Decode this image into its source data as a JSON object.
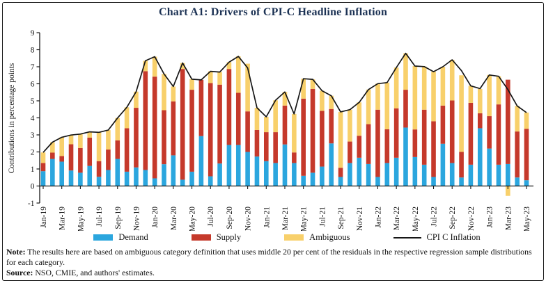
{
  "figure": {
    "title": "Chart A1: Drivers of CPI-C Headline Inflation",
    "note_label": "Note:",
    "note_text": " The results here are based on ambiguous category definition that uses middle 20 per cent of the residuals in the respective regression sample distributions for each category.",
    "source_label": "Source:",
    "source_text": " NSO, CMIE, and authors' estimates."
  },
  "colors": {
    "demand": "#2ba6de",
    "supply": "#c5392b",
    "ambiguous": "#f8d06b",
    "cpi_line": "#161616",
    "axis": "#161616",
    "title": "#1c3254"
  },
  "legend": [
    {
      "label": "Demand",
      "type": "box",
      "color_key": "demand"
    },
    {
      "label": "Supply",
      "type": "box",
      "color_key": "supply"
    },
    {
      "label": "Ambiguous",
      "type": "box",
      "color_key": "ambiguous"
    },
    {
      "label": "CPI C Inflation",
      "type": "line",
      "color_key": "cpi_line"
    }
  ],
  "chart_data": {
    "type": "bar",
    "subtype": "stacked-bars-with-line-overlay",
    "title": "Chart A1: Drivers of CPI-C Headline Inflation",
    "xlabel": "",
    "ylabel": "Contributions in percentage points",
    "ylim": [
      -1,
      9
    ],
    "yticks": [
      -1,
      0,
      1,
      2,
      3,
      4,
      5,
      6,
      7,
      8,
      9
    ],
    "grid": false,
    "legend_position": "bottom",
    "x_tick_every": 2,
    "x": [
      "Jan-19",
      "Feb-19",
      "Mar-19",
      "Apr-19",
      "May-19",
      "Jun-19",
      "Jul-19",
      "Aug-19",
      "Sep-19",
      "Oct-19",
      "Nov-19",
      "Dec-19",
      "Jan-20",
      "Feb-20",
      "Mar-20",
      "Apr-20",
      "May-20",
      "Jun-20",
      "Jul-20",
      "Aug-20",
      "Sep-20",
      "Oct-20",
      "Nov-20",
      "Dec-20",
      "Jan-21",
      "Feb-21",
      "Mar-21",
      "Apr-21",
      "May-21",
      "Jun-21",
      "Jul-21",
      "Aug-21",
      "Sep-21",
      "Oct-21",
      "Nov-21",
      "Dec-21",
      "Jan-22",
      "Feb-22",
      "Mar-22",
      "Apr-22",
      "May-22",
      "Jun-22",
      "Jul-22",
      "Aug-22",
      "Sep-22",
      "Oct-22",
      "Nov-22",
      "Dec-22",
      "Jan-23",
      "Feb-23",
      "Mar-23",
      "Apr-23",
      "May-23"
    ],
    "series": [
      {
        "name": "Demand",
        "color_key": "demand",
        "values": [
          0.87,
          1.59,
          1.43,
          0.91,
          0.78,
          1.18,
          0.54,
          0.94,
          1.59,
          0.84,
          1.09,
          0.94,
          0.45,
          1.28,
          1.8,
          0.37,
          0.84,
          2.93,
          0.57,
          1.32,
          2.41,
          2.41,
          2.0,
          1.73,
          1.46,
          1.35,
          2.44,
          1.35,
          0.6,
          0.78,
          1.14,
          2.5,
          0.53,
          1.35,
          1.66,
          1.29,
          0.53,
          1.35,
          1.66,
          3.43,
          1.7,
          1.25,
          0.53,
          2.48,
          1.35,
          0.5,
          1.25,
          3.39,
          2.2,
          1.25,
          1.29,
          0.5,
          0.34
        ]
      },
      {
        "name": "Supply",
        "color_key": "supply",
        "values": [
          0.48,
          0.37,
          0.33,
          1.54,
          1.45,
          1.66,
          0.92,
          1.2,
          1.09,
          2.55,
          3.5,
          5.8,
          5.97,
          3.17,
          3.17,
          6.5,
          4.81,
          3.3,
          5.47,
          4.63,
          4.46,
          3.06,
          2.38,
          1.56,
          1.7,
          1.81,
          2.28,
          0.62,
          4.53,
          4.92,
          3.27,
          2.02,
          0.54,
          1.26,
          1.29,
          2.34,
          3.95,
          1.98,
          2.9,
          2.22,
          1.62,
          3.23,
          3.27,
          2.24,
          3.67,
          1.5,
          3.63,
          0.88,
          1.9,
          3.54,
          4.95,
          2.7,
          3.02
        ]
      },
      {
        "name": "Ambiguous",
        "color_key": "ambiguous",
        "values": [
          0.62,
          0.61,
          1.1,
          0.54,
          0.82,
          0.34,
          1.69,
          1.14,
          1.31,
          1.23,
          0.95,
          0.61,
          1.17,
          2.13,
          0.87,
          0.35,
          0.62,
          0.0,
          0.69,
          0.74,
          0.4,
          2.14,
          2.8,
          1.3,
          0.9,
          1.87,
          0.8,
          2.26,
          1.17,
          0.56,
          1.18,
          0.78,
          3.28,
          1.87,
          1.96,
          2.03,
          1.53,
          2.74,
          2.39,
          2.14,
          3.72,
          2.53,
          2.91,
          2.28,
          2.39,
          4.5,
          1.0,
          1.43,
          2.42,
          1.65,
          -0.58,
          1.5,
          0.95
        ]
      }
    ],
    "line": {
      "name": "CPI C Inflation",
      "color_key": "cpi_line",
      "values": [
        1.97,
        2.57,
        2.86,
        2.99,
        3.05,
        3.18,
        3.15,
        3.28,
        3.99,
        4.62,
        5.54,
        7.35,
        7.59,
        6.58,
        5.84,
        7.22,
        6.27,
        6.23,
        6.73,
        6.69,
        7.27,
        7.61,
        6.93,
        4.59,
        4.06,
        5.03,
        5.52,
        4.23,
        6.3,
        6.26,
        5.59,
        5.3,
        4.35,
        4.48,
        4.91,
        5.66,
        6.01,
        6.07,
        6.95,
        7.79,
        7.04,
        7.01,
        6.71,
        7.0,
        7.41,
        6.77,
        5.88,
        5.72,
        6.52,
        6.44,
        5.66,
        4.7,
        4.31
      ]
    }
  }
}
